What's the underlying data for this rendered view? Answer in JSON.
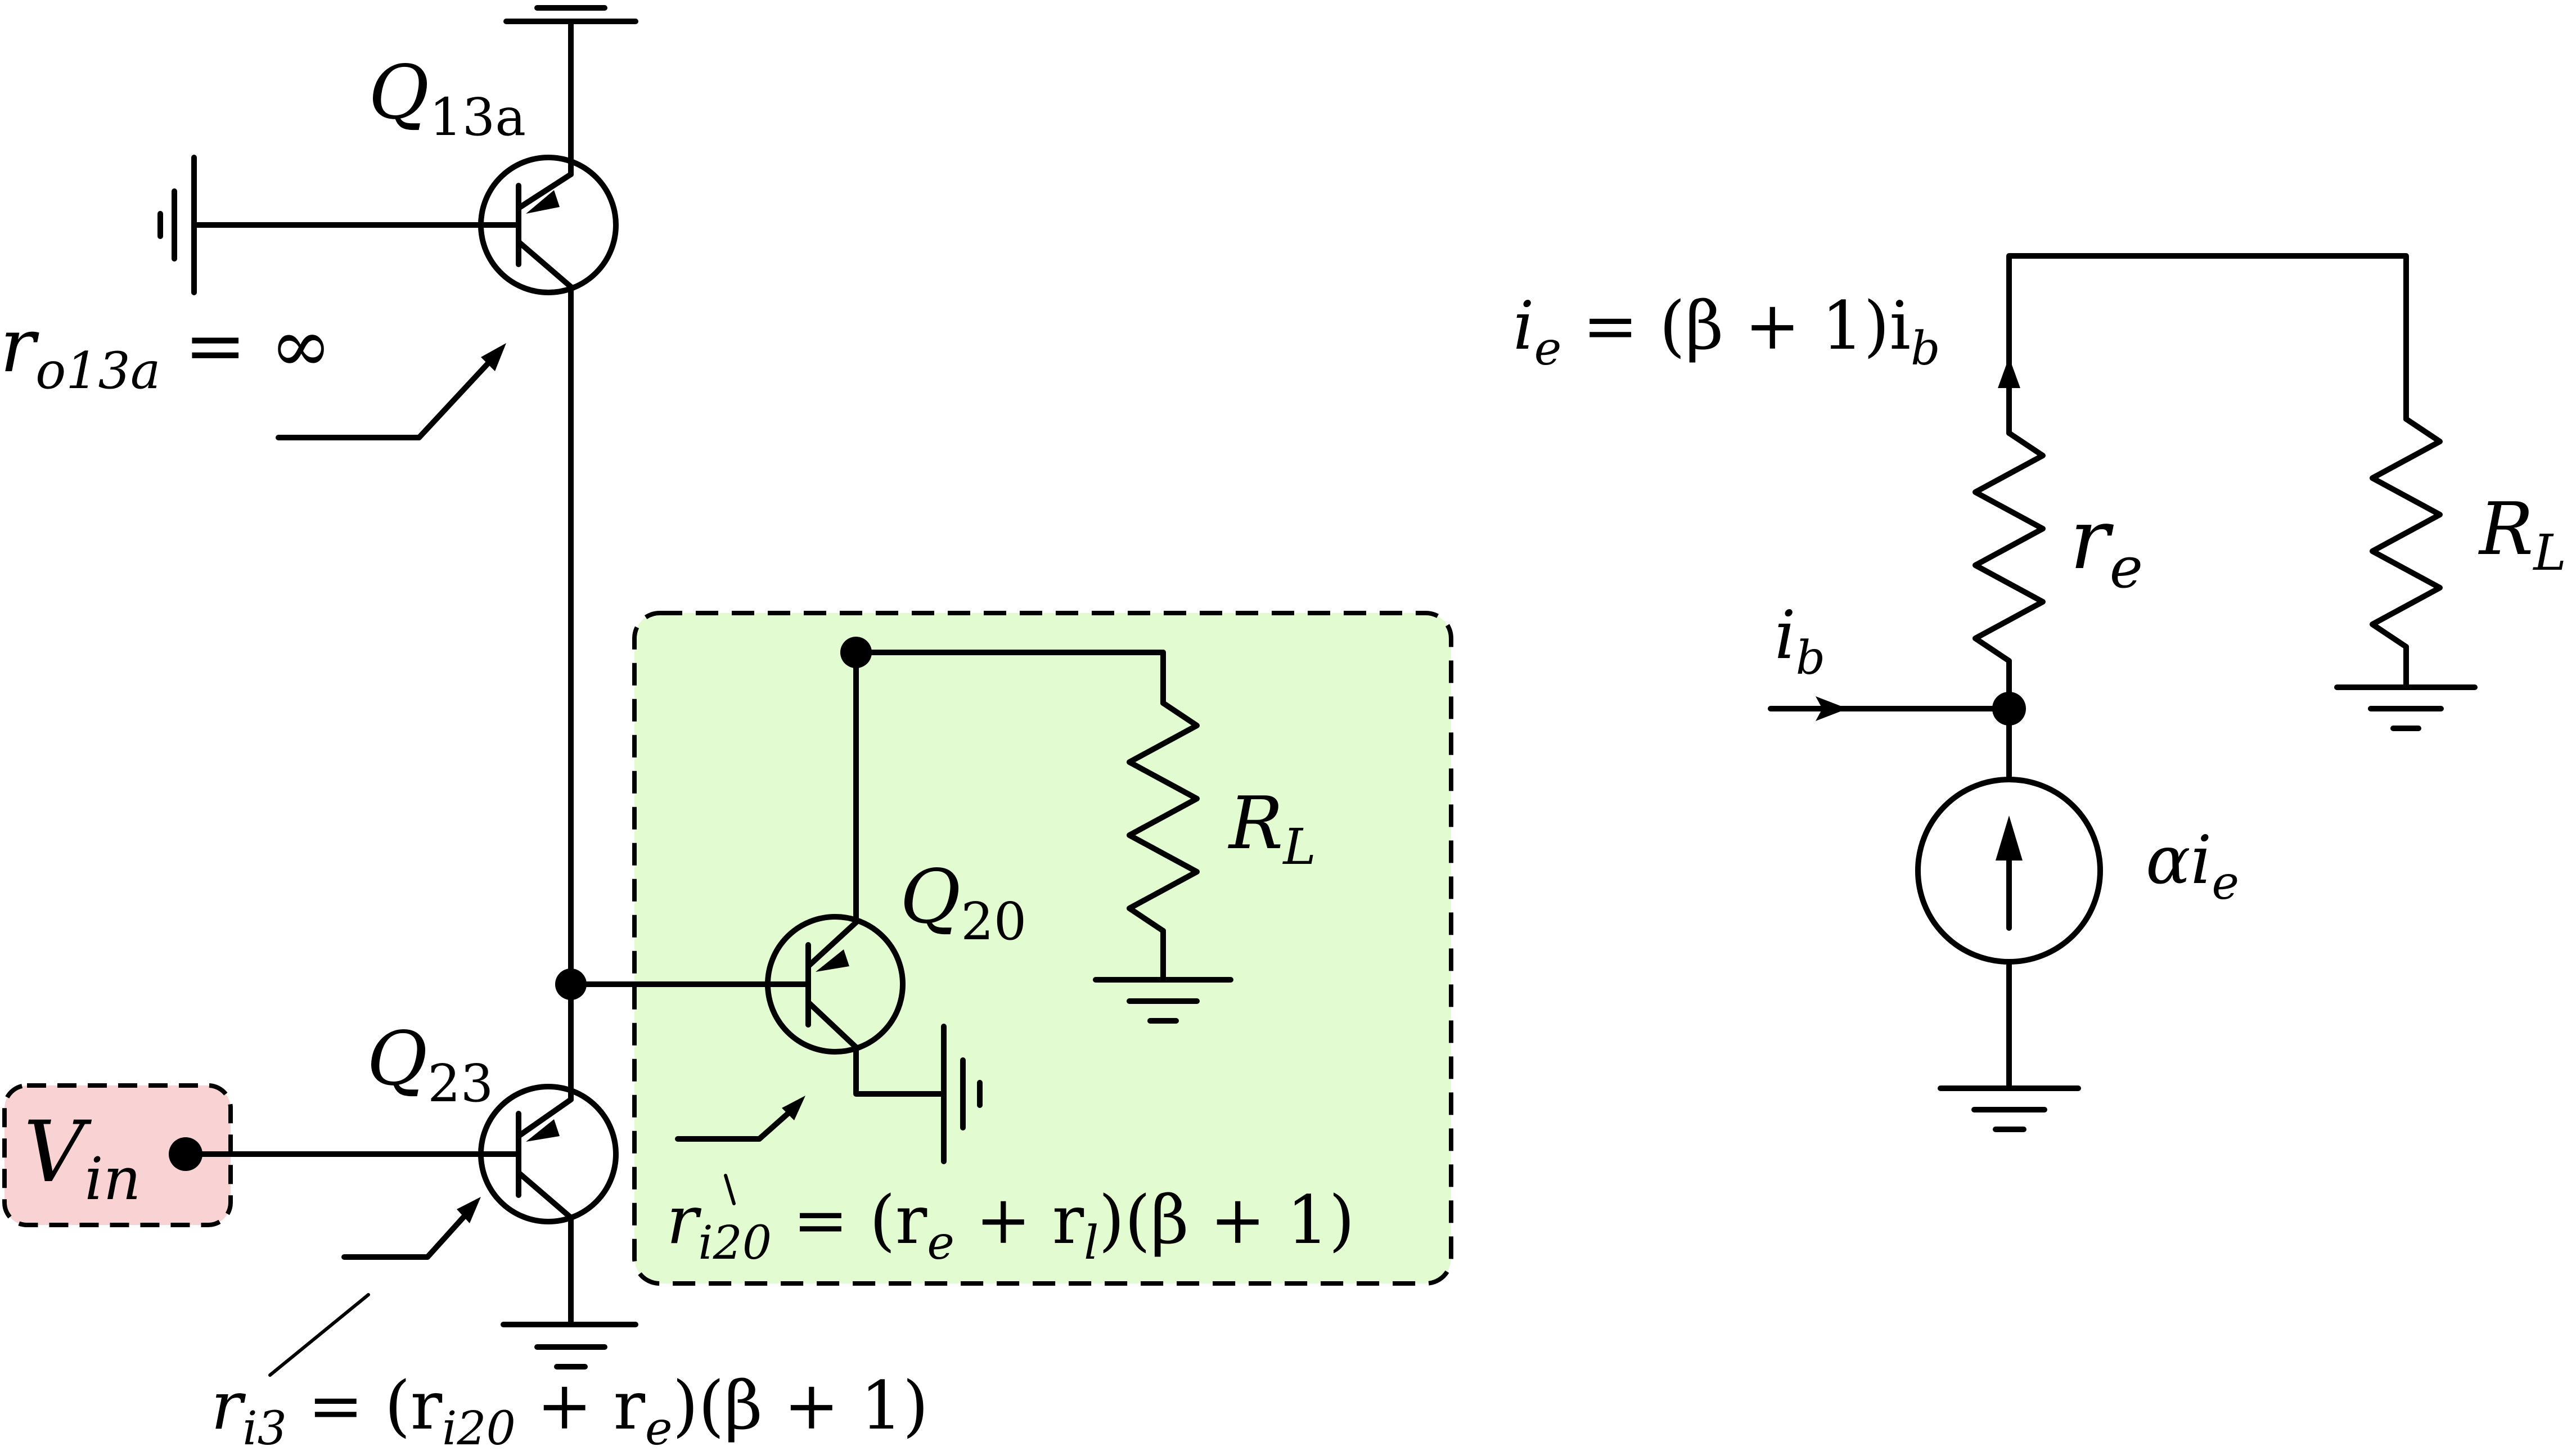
{
  "colors": {
    "green_box_fill": "#e2fbd1",
    "red_box_fill": "#f9d3d3",
    "stroke": "#000000"
  },
  "labels": {
    "q13a": {
      "main": "Q",
      "sub": "13a"
    },
    "ro13a": {
      "main": "r",
      "sub": "o13a",
      "rest": " = ∞"
    },
    "q23": {
      "main": "Q",
      "sub": "23"
    },
    "q20": {
      "main": "Q",
      "sub": "20"
    },
    "rl_left": {
      "main": "R",
      "sub": "L"
    },
    "vin": {
      "main": "V",
      "sub": "in"
    },
    "ri20": {
      "main": "r",
      "sub": "i20",
      "rest": " = (r",
      "sub2": "e",
      "rest2": " + r",
      "sub3": "l",
      "rest3": ")(β + 1)"
    },
    "ri3": {
      "main": "r",
      "sub": "i3",
      "rest": " = (r",
      "sub2": "i20",
      "rest2": " + r",
      "sub3": "e",
      "rest3": ")(β + 1)"
    },
    "ie": {
      "main": "i",
      "sub": "e",
      "rest": " = (β + 1)i",
      "sub2": "b"
    },
    "re": {
      "main": "r",
      "sub": "e"
    },
    "rl_right": {
      "main": "R",
      "sub": "L"
    },
    "ib": {
      "main": "i",
      "sub": "b"
    },
    "alpha_ie": {
      "main": "αi",
      "sub": "e"
    }
  }
}
